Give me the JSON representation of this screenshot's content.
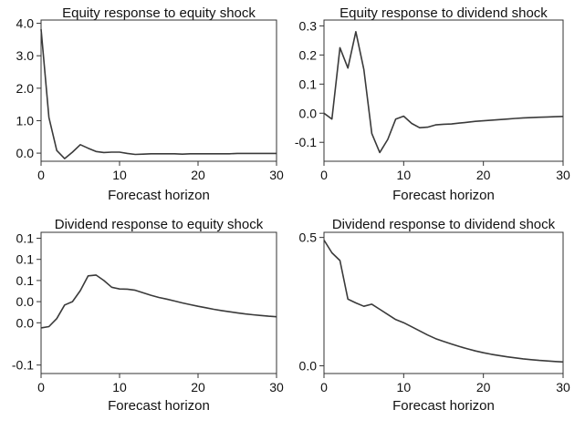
{
  "chart_data": [
    {
      "type": "line",
      "title": "Equity response to equity shock",
      "xlabel": "Forecast horizon",
      "ylabel": "",
      "xlim": [
        0,
        30
      ],
      "ylim": [
        -0.25,
        4.1
      ],
      "xticks": [
        0,
        10,
        20,
        30
      ],
      "xtick_labels": [
        "0",
        "10",
        "20",
        "30"
      ],
      "yticks": [
        0,
        1,
        2,
        3,
        4
      ],
      "ytick_labels": [
        "0.0",
        "1.0",
        "2.0",
        "3.0",
        "4.0"
      ],
      "grid": false,
      "series": [
        {
          "x": [
            0,
            1,
            2,
            3,
            4,
            5,
            6,
            7,
            8,
            9,
            10,
            11,
            12,
            13,
            14,
            15,
            16,
            17,
            18,
            19,
            20,
            21,
            22,
            23,
            24,
            25,
            26,
            27,
            28,
            29,
            30
          ],
          "values": [
            3.82,
            1.1,
            0.08,
            -0.17,
            0.03,
            0.26,
            0.15,
            0.05,
            0.02,
            0.03,
            0.03,
            -0.01,
            -0.04,
            -0.03,
            -0.02,
            -0.02,
            -0.02,
            -0.02,
            -0.03,
            -0.02,
            -0.02,
            -0.02,
            -0.02,
            -0.02,
            -0.02,
            -0.01,
            -0.01,
            -0.01,
            -0.01,
            -0.01,
            -0.01
          ]
        }
      ]
    },
    {
      "type": "line",
      "title": "Equity response to dividend shock",
      "xlabel": "Forecast horizon",
      "ylabel": "",
      "xlim": [
        0,
        30
      ],
      "ylim": [
        -0.165,
        0.32
      ],
      "xticks": [
        0,
        10,
        20,
        30
      ],
      "xtick_labels": [
        "0",
        "10",
        "20",
        "30"
      ],
      "yticks": [
        -0.1,
        0,
        0.1,
        0.2,
        0.3
      ],
      "ytick_labels": [
        "-0.1",
        "0.0",
        "0.1",
        "0.2",
        "0.3"
      ],
      "grid": false,
      "series": [
        {
          "x": [
            0,
            1,
            2,
            3,
            4,
            5,
            6,
            7,
            8,
            9,
            10,
            11,
            12,
            13,
            14,
            15,
            16,
            17,
            18,
            19,
            20,
            21,
            22,
            23,
            24,
            25,
            26,
            27,
            28,
            29,
            30
          ],
          "values": [
            0.0,
            -0.02,
            0.225,
            0.155,
            0.28,
            0.15,
            -0.07,
            -0.135,
            -0.09,
            -0.02,
            -0.01,
            -0.035,
            -0.05,
            -0.048,
            -0.04,
            -0.038,
            -0.037,
            -0.034,
            -0.031,
            -0.028,
            -0.026,
            -0.024,
            -0.022,
            -0.02,
            -0.018,
            -0.016,
            -0.015,
            -0.014,
            -0.013,
            -0.012,
            -0.011
          ]
        }
      ]
    },
    {
      "type": "line",
      "title": "Dividend response to equity shock",
      "xlabel": "Forecast horizon",
      "ylabel": "",
      "xlim": [
        0,
        30
      ],
      "ylim": [
        -0.06,
        0.107
      ],
      "xticks": [
        0,
        10,
        20,
        30
      ],
      "xtick_labels": [
        "0",
        "10",
        "20",
        "30"
      ],
      "yticks": [
        -0.05,
        0,
        0.025,
        0.05,
        0.075,
        0.1
      ],
      "ytick_labels": [
        "-0.1",
        "0.0",
        "0.0",
        "0.1",
        "0.1",
        "0.1"
      ],
      "grid": false,
      "series": [
        {
          "x": [
            0,
            1,
            2,
            3,
            4,
            5,
            6,
            7,
            8,
            9,
            10,
            11,
            12,
            13,
            14,
            15,
            16,
            17,
            18,
            19,
            20,
            21,
            22,
            23,
            24,
            25,
            26,
            27,
            28,
            29,
            30
          ],
          "values": [
            -0.006,
            -0.0045,
            0.005,
            0.021,
            0.025,
            0.038,
            0.0555,
            0.0565,
            0.05,
            0.042,
            0.04,
            0.0398,
            0.0385,
            0.0355,
            0.0325,
            0.03,
            0.028,
            0.0258,
            0.0235,
            0.0215,
            0.0195,
            0.0178,
            0.016,
            0.0145,
            0.013,
            0.0118,
            0.0105,
            0.0095,
            0.0086,
            0.0078,
            0.0071
          ]
        }
      ]
    },
    {
      "type": "line",
      "title": "Dividend response to dividend shock",
      "xlabel": "Forecast horizon",
      "ylabel": "",
      "xlim": [
        0,
        30
      ],
      "ylim": [
        -0.03,
        0.52
      ],
      "xticks": [
        0,
        10,
        20,
        30
      ],
      "xtick_labels": [
        "0",
        "10",
        "20",
        "30"
      ],
      "yticks": [
        0,
        0.5
      ],
      "ytick_labels": [
        "0.0",
        "0.5"
      ],
      "grid": false,
      "series": [
        {
          "x": [
            0,
            1,
            2,
            3,
            4,
            5,
            6,
            7,
            8,
            9,
            10,
            11,
            12,
            13,
            14,
            15,
            16,
            17,
            18,
            19,
            20,
            21,
            22,
            23,
            24,
            25,
            26,
            27,
            28,
            29,
            30
          ],
          "values": [
            0.49,
            0.44,
            0.41,
            0.26,
            0.245,
            0.232,
            0.24,
            0.22,
            0.2,
            0.18,
            0.168,
            0.152,
            0.136,
            0.12,
            0.106,
            0.095,
            0.085,
            0.075,
            0.066,
            0.058,
            0.051,
            0.045,
            0.04,
            0.035,
            0.031,
            0.027,
            0.024,
            0.021,
            0.019,
            0.017,
            0.015
          ]
        }
      ]
    }
  ]
}
